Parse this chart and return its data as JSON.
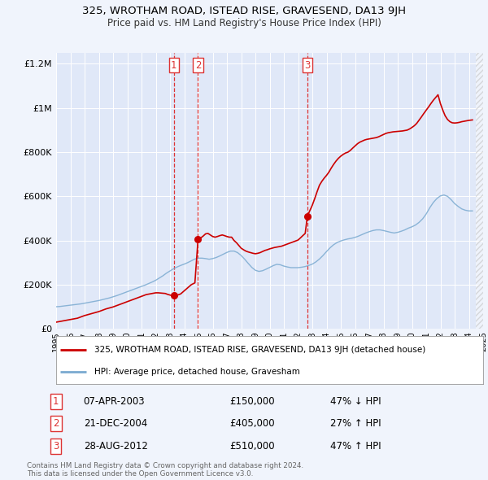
{
  "title": "325, WROTHAM ROAD, ISTEAD RISE, GRAVESEND, DA13 9JH",
  "subtitle": "Price paid vs. HM Land Registry's House Price Index (HPI)",
  "background_color": "#f0f4fc",
  "plot_bg_color": "#e0e8f8",
  "legend_label_red": "325, WROTHAM ROAD, ISTEAD RISE, GRAVESEND, DA13 9JH (detached house)",
  "legend_label_blue": "HPI: Average price, detached house, Gravesham",
  "footer1": "Contains HM Land Registry data © Crown copyright and database right 2024.",
  "footer2": "This data is licensed under the Open Government Licence v3.0.",
  "transactions": [
    {
      "num": 1,
      "date": "07-APR-2003",
      "price": 150000,
      "year": 2003.27,
      "price_label": "£150,000",
      "hpi_diff": "47% ↓ HPI"
    },
    {
      "num": 2,
      "date": "21-DEC-2004",
      "price": 405000,
      "year": 2004.97,
      "price_label": "£405,000",
      "hpi_diff": "27% ↑ HPI"
    },
    {
      "num": 3,
      "date": "28-AUG-2012",
      "price": 510000,
      "year": 2012.65,
      "price_label": "£510,000",
      "hpi_diff": "47% ↑ HPI"
    }
  ],
  "hpi_x": [
    1995.0,
    1995.25,
    1995.5,
    1995.75,
    1996.0,
    1996.25,
    1996.5,
    1996.75,
    1997.0,
    1997.25,
    1997.5,
    1997.75,
    1998.0,
    1998.25,
    1998.5,
    1998.75,
    1999.0,
    1999.25,
    1999.5,
    1999.75,
    2000.0,
    2000.25,
    2000.5,
    2000.75,
    2001.0,
    2001.25,
    2001.5,
    2001.75,
    2002.0,
    2002.25,
    2002.5,
    2002.75,
    2003.0,
    2003.25,
    2003.5,
    2003.75,
    2004.0,
    2004.25,
    2004.5,
    2004.75,
    2005.0,
    2005.25,
    2005.5,
    2005.75,
    2006.0,
    2006.25,
    2006.5,
    2006.75,
    2007.0,
    2007.25,
    2007.5,
    2007.75,
    2008.0,
    2008.25,
    2008.5,
    2008.75,
    2009.0,
    2009.25,
    2009.5,
    2009.75,
    2010.0,
    2010.25,
    2010.5,
    2010.75,
    2011.0,
    2011.25,
    2011.5,
    2011.75,
    2012.0,
    2012.25,
    2012.5,
    2012.75,
    2013.0,
    2013.25,
    2013.5,
    2013.75,
    2014.0,
    2014.25,
    2014.5,
    2014.75,
    2015.0,
    2015.25,
    2015.5,
    2015.75,
    2016.0,
    2016.25,
    2016.5,
    2016.75,
    2017.0,
    2017.25,
    2017.5,
    2017.75,
    2018.0,
    2018.25,
    2018.5,
    2018.75,
    2019.0,
    2019.25,
    2019.5,
    2019.75,
    2020.0,
    2020.25,
    2020.5,
    2020.75,
    2021.0,
    2021.25,
    2021.5,
    2021.75,
    2022.0,
    2022.25,
    2022.5,
    2022.75,
    2023.0,
    2023.25,
    2023.5,
    2023.75,
    2024.0,
    2024.25
  ],
  "hpi_y": [
    100000,
    101000,
    103000,
    105000,
    107000,
    109000,
    111000,
    113000,
    116000,
    119000,
    122000,
    125000,
    128000,
    132000,
    136000,
    140000,
    145000,
    150000,
    156000,
    162000,
    168000,
    174000,
    180000,
    186000,
    192000,
    198000,
    205000,
    212000,
    220000,
    230000,
    240000,
    252000,
    262000,
    272000,
    280000,
    287000,
    293000,
    300000,
    308000,
    316000,
    320000,
    320000,
    318000,
    315000,
    318000,
    323000,
    330000,
    338000,
    346000,
    352000,
    352000,
    345000,
    332000,
    315000,
    296000,
    278000,
    265000,
    260000,
    263000,
    270000,
    278000,
    286000,
    292000,
    290000,
    284000,
    280000,
    277000,
    277000,
    277000,
    279000,
    282000,
    287000,
    293000,
    303000,
    316000,
    332000,
    350000,
    367000,
    381000,
    391000,
    398000,
    403000,
    407000,
    410000,
    414000,
    420000,
    427000,
    434000,
    440000,
    445000,
    448000,
    448000,
    445000,
    441000,
    437000,
    434000,
    437000,
    442000,
    448000,
    456000,
    462000,
    470000,
    482000,
    498000,
    520000,
    548000,
    572000,
    590000,
    602000,
    606000,
    600000,
    585000,
    567000,
    554000,
    543000,
    537000,
    534000,
    534000
  ],
  "price_x": [
    1995.0,
    1995.08,
    1995.17,
    1995.25,
    1995.33,
    1995.42,
    1995.5,
    1995.58,
    1995.67,
    1995.75,
    1995.83,
    1995.92,
    1996.0,
    1996.08,
    1996.17,
    1996.25,
    1996.33,
    1996.42,
    1996.5,
    1996.58,
    1996.67,
    1996.75,
    1996.83,
    1996.92,
    1997.0,
    1997.17,
    1997.33,
    1997.5,
    1997.67,
    1997.83,
    1998.0,
    1998.17,
    1998.33,
    1998.5,
    1998.67,
    1998.83,
    1999.0,
    1999.17,
    1999.33,
    1999.5,
    1999.67,
    1999.83,
    2000.0,
    2000.17,
    2000.33,
    2000.5,
    2000.67,
    2000.83,
    2001.0,
    2001.17,
    2001.33,
    2001.5,
    2001.67,
    2001.83,
    2002.0,
    2002.17,
    2002.33,
    2002.5,
    2002.67,
    2002.83,
    2003.0,
    2003.1,
    2003.27,
    2003.5,
    2003.75,
    2004.0,
    2004.25,
    2004.5,
    2004.75,
    2004.97,
    2005.0,
    2005.17,
    2005.33,
    2005.5,
    2005.67,
    2005.83,
    2006.0,
    2006.17,
    2006.33,
    2006.5,
    2006.67,
    2006.83,
    2007.0,
    2007.17,
    2007.33,
    2007.5,
    2007.67,
    2007.83,
    2008.0,
    2008.17,
    2008.33,
    2008.5,
    2008.67,
    2008.83,
    2009.0,
    2009.17,
    2009.33,
    2009.5,
    2009.67,
    2009.83,
    2010.0,
    2010.17,
    2010.33,
    2010.5,
    2010.67,
    2010.83,
    2011.0,
    2011.17,
    2011.33,
    2011.5,
    2011.67,
    2011.83,
    2012.0,
    2012.17,
    2012.33,
    2012.5,
    2012.65,
    2013.0,
    2013.17,
    2013.33,
    2013.5,
    2013.67,
    2013.83,
    2014.0,
    2014.17,
    2014.33,
    2014.5,
    2014.67,
    2014.83,
    2015.0,
    2015.17,
    2015.33,
    2015.5,
    2015.67,
    2015.83,
    2016.0,
    2016.17,
    2016.33,
    2016.5,
    2016.67,
    2016.83,
    2017.0,
    2017.17,
    2017.33,
    2017.5,
    2017.67,
    2017.83,
    2018.0,
    2018.17,
    2018.33,
    2018.5,
    2018.67,
    2018.83,
    2019.0,
    2019.17,
    2019.33,
    2019.5,
    2019.67,
    2019.83,
    2020.0,
    2020.17,
    2020.33,
    2020.5,
    2020.67,
    2020.83,
    2021.0,
    2021.17,
    2021.33,
    2021.5,
    2021.67,
    2021.83,
    2022.0,
    2022.17,
    2022.33,
    2022.5,
    2022.67,
    2022.83,
    2023.0,
    2023.17,
    2023.33,
    2023.5,
    2023.67,
    2023.83,
    2024.0,
    2024.25
  ],
  "price_y": [
    30000,
    31000,
    32000,
    33000,
    34000,
    35000,
    36000,
    37000,
    38000,
    39000,
    40000,
    41000,
    42000,
    43000,
    44000,
    45000,
    46000,
    47000,
    48000,
    50000,
    52000,
    54000,
    56000,
    58000,
    60000,
    63000,
    66000,
    69000,
    72000,
    75000,
    78000,
    82000,
    86000,
    90000,
    93000,
    96000,
    99000,
    103000,
    107000,
    111000,
    115000,
    119000,
    123000,
    127000,
    131000,
    135000,
    139000,
    143000,
    147000,
    151000,
    155000,
    157000,
    159000,
    161000,
    163000,
    163000,
    162000,
    161000,
    160000,
    156000,
    153000,
    151000,
    150000,
    152000,
    158000,
    172000,
    186000,
    200000,
    208000,
    405000,
    410000,
    412000,
    420000,
    430000,
    432000,
    425000,
    418000,
    415000,
    418000,
    422000,
    425000,
    422000,
    418000,
    415000,
    415000,
    400000,
    390000,
    378000,
    365000,
    358000,
    352000,
    348000,
    345000,
    342000,
    340000,
    342000,
    345000,
    350000,
    355000,
    358000,
    362000,
    365000,
    368000,
    370000,
    372000,
    374000,
    378000,
    382000,
    386000,
    390000,
    394000,
    398000,
    402000,
    412000,
    422000,
    432000,
    510000,
    560000,
    590000,
    620000,
    650000,
    668000,
    682000,
    695000,
    710000,
    728000,
    745000,
    760000,
    772000,
    782000,
    790000,
    796000,
    800000,
    808000,
    818000,
    828000,
    838000,
    845000,
    850000,
    855000,
    858000,
    860000,
    862000,
    864000,
    866000,
    870000,
    875000,
    880000,
    885000,
    888000,
    890000,
    892000,
    893000,
    894000,
    895000,
    896000,
    898000,
    900000,
    905000,
    912000,
    920000,
    930000,
    945000,
    960000,
    975000,
    990000,
    1005000,
    1020000,
    1035000,
    1048000,
    1060000,
    1020000,
    990000,
    965000,
    948000,
    938000,
    933000,
    932000,
    933000,
    935000,
    938000,
    940000,
    942000,
    944000,
    946000
  ],
  "xlim": [
    1995,
    2025
  ],
  "ylim": [
    0,
    1250000
  ],
  "yticks": [
    0,
    200000,
    400000,
    600000,
    800000,
    1000000,
    1200000
  ],
  "ytick_labels": [
    "£0",
    "£200K",
    "£400K",
    "£600K",
    "£800K",
    "£1M",
    "£1.2M"
  ],
  "xticks": [
    1995,
    1996,
    1997,
    1998,
    1999,
    2000,
    2001,
    2002,
    2003,
    2004,
    2005,
    2006,
    2007,
    2008,
    2009,
    2010,
    2011,
    2012,
    2013,
    2014,
    2015,
    2016,
    2017,
    2018,
    2019,
    2020,
    2021,
    2022,
    2023,
    2024,
    2025
  ],
  "red_color": "#cc0000",
  "blue_color": "#7aaad0",
  "vline_color": "#dd3333",
  "grid_color": "#ffffff"
}
